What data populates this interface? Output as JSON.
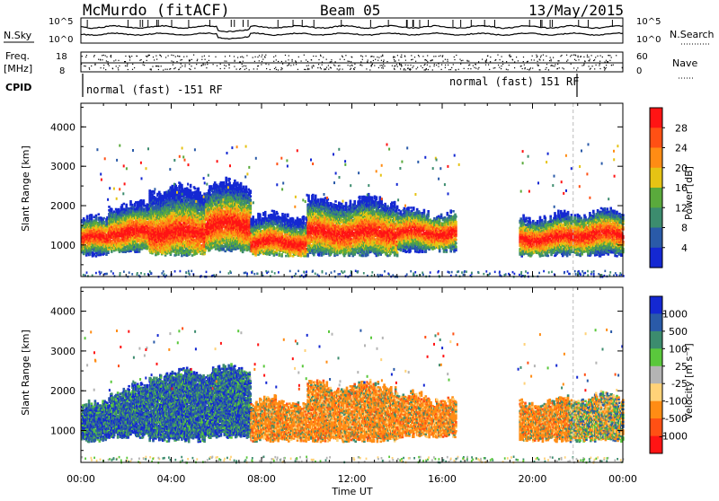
{
  "header": {
    "station": "McMurdo (fitACF)",
    "beam": "Beam 05",
    "date": "13/May/2015"
  },
  "noise_panel": {
    "left_label": "N.Sky",
    "right_label": "N.Search",
    "tick_top": "10^5",
    "tick_bottom": "10^0"
  },
  "freq_panel": {
    "left_label_1": "Freq.",
    "left_label_2": "[MHz]",
    "left_tick_top": "18",
    "left_tick_bottom": "8",
    "right_label": "Nave",
    "right_tick_top": "60",
    "right_tick_bottom": "0"
  },
  "cpid": {
    "label": "CPID",
    "mode_1": "normal (fast) -151 RF",
    "mode_2": "normal (fast) 151 RF"
  },
  "colors": {
    "power_scale": [
      "#1428d2",
      "#2a5aa8",
      "#3c8c6e",
      "#5aaa3c",
      "#e6c314",
      "#ff8c14",
      "#ff5014",
      "#ff1414"
    ],
    "velocity_scale": [
      "#1428d2",
      "#2a5aa8",
      "#3c8c6e",
      "#5ac83c",
      "#b4b4b4",
      "#ffd278",
      "#ff8c14",
      "#ff5014",
      "#ff1414"
    ]
  },
  "chart_data": [
    {
      "type": "heatmap",
      "panel": "power",
      "xlabel": "",
      "ylabel": "Slant Range [km]",
      "x_ticks": [
        "00:00",
        "04:00",
        "08:00",
        "12:00",
        "16:00",
        "20:00",
        "00:00"
      ],
      "y_ticks": [
        "1000",
        "2000",
        "3000",
        "4000"
      ],
      "ylim": [
        200,
        4600
      ],
      "colorbar_label": "Power [dB]",
      "colorbar_ticks": [
        "4",
        "8",
        "12",
        "16",
        "20",
        "24",
        "28"
      ],
      "scatter_bands": [
        {
          "t0": 0.0,
          "t1": 1.2,
          "r0": 700,
          "r1": 1700,
          "core": 1150
        },
        {
          "t0": 1.2,
          "t1": 3.0,
          "r0": 800,
          "r1": 2100,
          "core": 1300
        },
        {
          "t0": 3.0,
          "t1": 5.5,
          "r0": 700,
          "r1": 2500,
          "core": 1300
        },
        {
          "t0": 5.5,
          "t1": 7.5,
          "r0": 800,
          "r1": 2600,
          "core": 1500
        },
        {
          "t0": 7.5,
          "t1": 10.0,
          "r0": 700,
          "r1": 1800,
          "core": 1050
        },
        {
          "t0": 10.0,
          "t1": 14.0,
          "r0": 700,
          "r1": 2200,
          "core": 1300
        },
        {
          "t0": 14.0,
          "t1": 16.6,
          "r0": 800,
          "r1": 1900,
          "core": 1300
        },
        {
          "t0": 19.4,
          "t1": 21.6,
          "r0": 700,
          "r1": 1800,
          "core": 1150
        },
        {
          "t0": 21.6,
          "t1": 24.0,
          "r0": 700,
          "r1": 1900,
          "core": 1250
        }
      ]
    },
    {
      "type": "heatmap",
      "panel": "velocity",
      "xlabel": "Time UT",
      "ylabel": "Slant Range [km]",
      "x_ticks": [
        "00:00",
        "04:00",
        "08:00",
        "12:00",
        "16:00",
        "20:00",
        "00:00"
      ],
      "y_ticks": [
        "1000",
        "2000",
        "3000",
        "4000"
      ],
      "ylim": [
        200,
        4600
      ],
      "colorbar_label": "Velocity [m s⁻¹]",
      "colorbar_ticks": [
        "1000",
        "500",
        "100",
        "25",
        "-25",
        "-100",
        "-500",
        "-1000"
      ],
      "scatter_bands": [
        {
          "t0": 0.0,
          "t1": 1.2,
          "r0": 700,
          "r1": 1700,
          "vel": "toward"
        },
        {
          "t0": 1.2,
          "t1": 3.0,
          "r0": 800,
          "r1": 2100,
          "vel": "toward"
        },
        {
          "t0": 3.0,
          "t1": 5.5,
          "r0": 700,
          "r1": 2500,
          "vel": "toward"
        },
        {
          "t0": 5.5,
          "t1": 7.5,
          "r0": 800,
          "r1": 2600,
          "vel": "toward"
        },
        {
          "t0": 7.5,
          "t1": 10.0,
          "r0": 700,
          "r1": 1800,
          "vel": "away"
        },
        {
          "t0": 10.0,
          "t1": 14.0,
          "r0": 700,
          "r1": 2200,
          "vel": "away"
        },
        {
          "t0": 14.0,
          "t1": 16.6,
          "r0": 800,
          "r1": 1900,
          "vel": "away"
        },
        {
          "t0": 19.4,
          "t1": 21.6,
          "r0": 700,
          "r1": 1800,
          "vel": "away"
        },
        {
          "t0": 21.6,
          "t1": 24.0,
          "r0": 700,
          "r1": 1900,
          "vel": "mixed"
        }
      ]
    }
  ]
}
